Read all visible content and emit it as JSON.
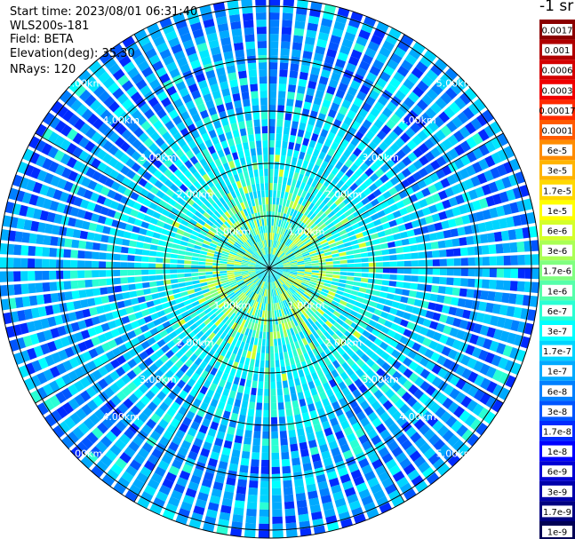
{
  "header": {
    "start_time": "Start time: 2023/08/01 06:31:40",
    "instrument": "WLS200s-181",
    "field": "Field: BETA",
    "elevation": "Elevation(deg): 35.30",
    "nrays": "NRays: 120"
  },
  "colorbar": {
    "unit": "-1 sr",
    "levels": [
      {
        "label": "0.0017",
        "color": "#8b0000"
      },
      {
        "label": "0.001",
        "color": "#b00000"
      },
      {
        "label": "0.0006",
        "color": "#d40000"
      },
      {
        "label": "0.0003",
        "color": "#f00000"
      },
      {
        "label": "0.00017",
        "color": "#ff2a00"
      },
      {
        "label": "0.0001",
        "color": "#ff5a00"
      },
      {
        "label": "6e-5",
        "color": "#ff8c00"
      },
      {
        "label": "3e-5",
        "color": "#ffb400"
      },
      {
        "label": "1.7e-5",
        "color": "#ffd800"
      },
      {
        "label": "1e-5",
        "color": "#ffff00"
      },
      {
        "label": "6e-6",
        "color": "#d4ff2a"
      },
      {
        "label": "3e-6",
        "color": "#aaff55"
      },
      {
        "label": "1.7e-6",
        "color": "#80ff80"
      },
      {
        "label": "1e-6",
        "color": "#55ffaa"
      },
      {
        "label": "6e-7",
        "color": "#2affd4"
      },
      {
        "label": "3e-7",
        "color": "#00ffff"
      },
      {
        "label": "1.7e-7",
        "color": "#00d4ff"
      },
      {
        "label": "1e-7",
        "color": "#00aaff"
      },
      {
        "label": "6e-8",
        "color": "#0080ff"
      },
      {
        "label": "3e-8",
        "color": "#0055ff"
      },
      {
        "label": "1.7e-8",
        "color": "#002aff"
      },
      {
        "label": "1e-8",
        "color": "#0000ff"
      },
      {
        "label": "6e-9",
        "color": "#0000d4"
      },
      {
        "label": "3e-9",
        "color": "#0000aa"
      },
      {
        "label": "1.7e-9",
        "color": "#000080"
      },
      {
        "label": "1e-9",
        "color": "#000055"
      }
    ]
  },
  "rings": [
    {
      "label": "1.00km"
    },
    {
      "label": "2.00km"
    },
    {
      "label": "3.00km"
    },
    {
      "label": "4.00km"
    },
    {
      "label": "5.00km"
    }
  ],
  "plot": {
    "sectors": 120,
    "spokes": 12,
    "rings": 5
  }
}
